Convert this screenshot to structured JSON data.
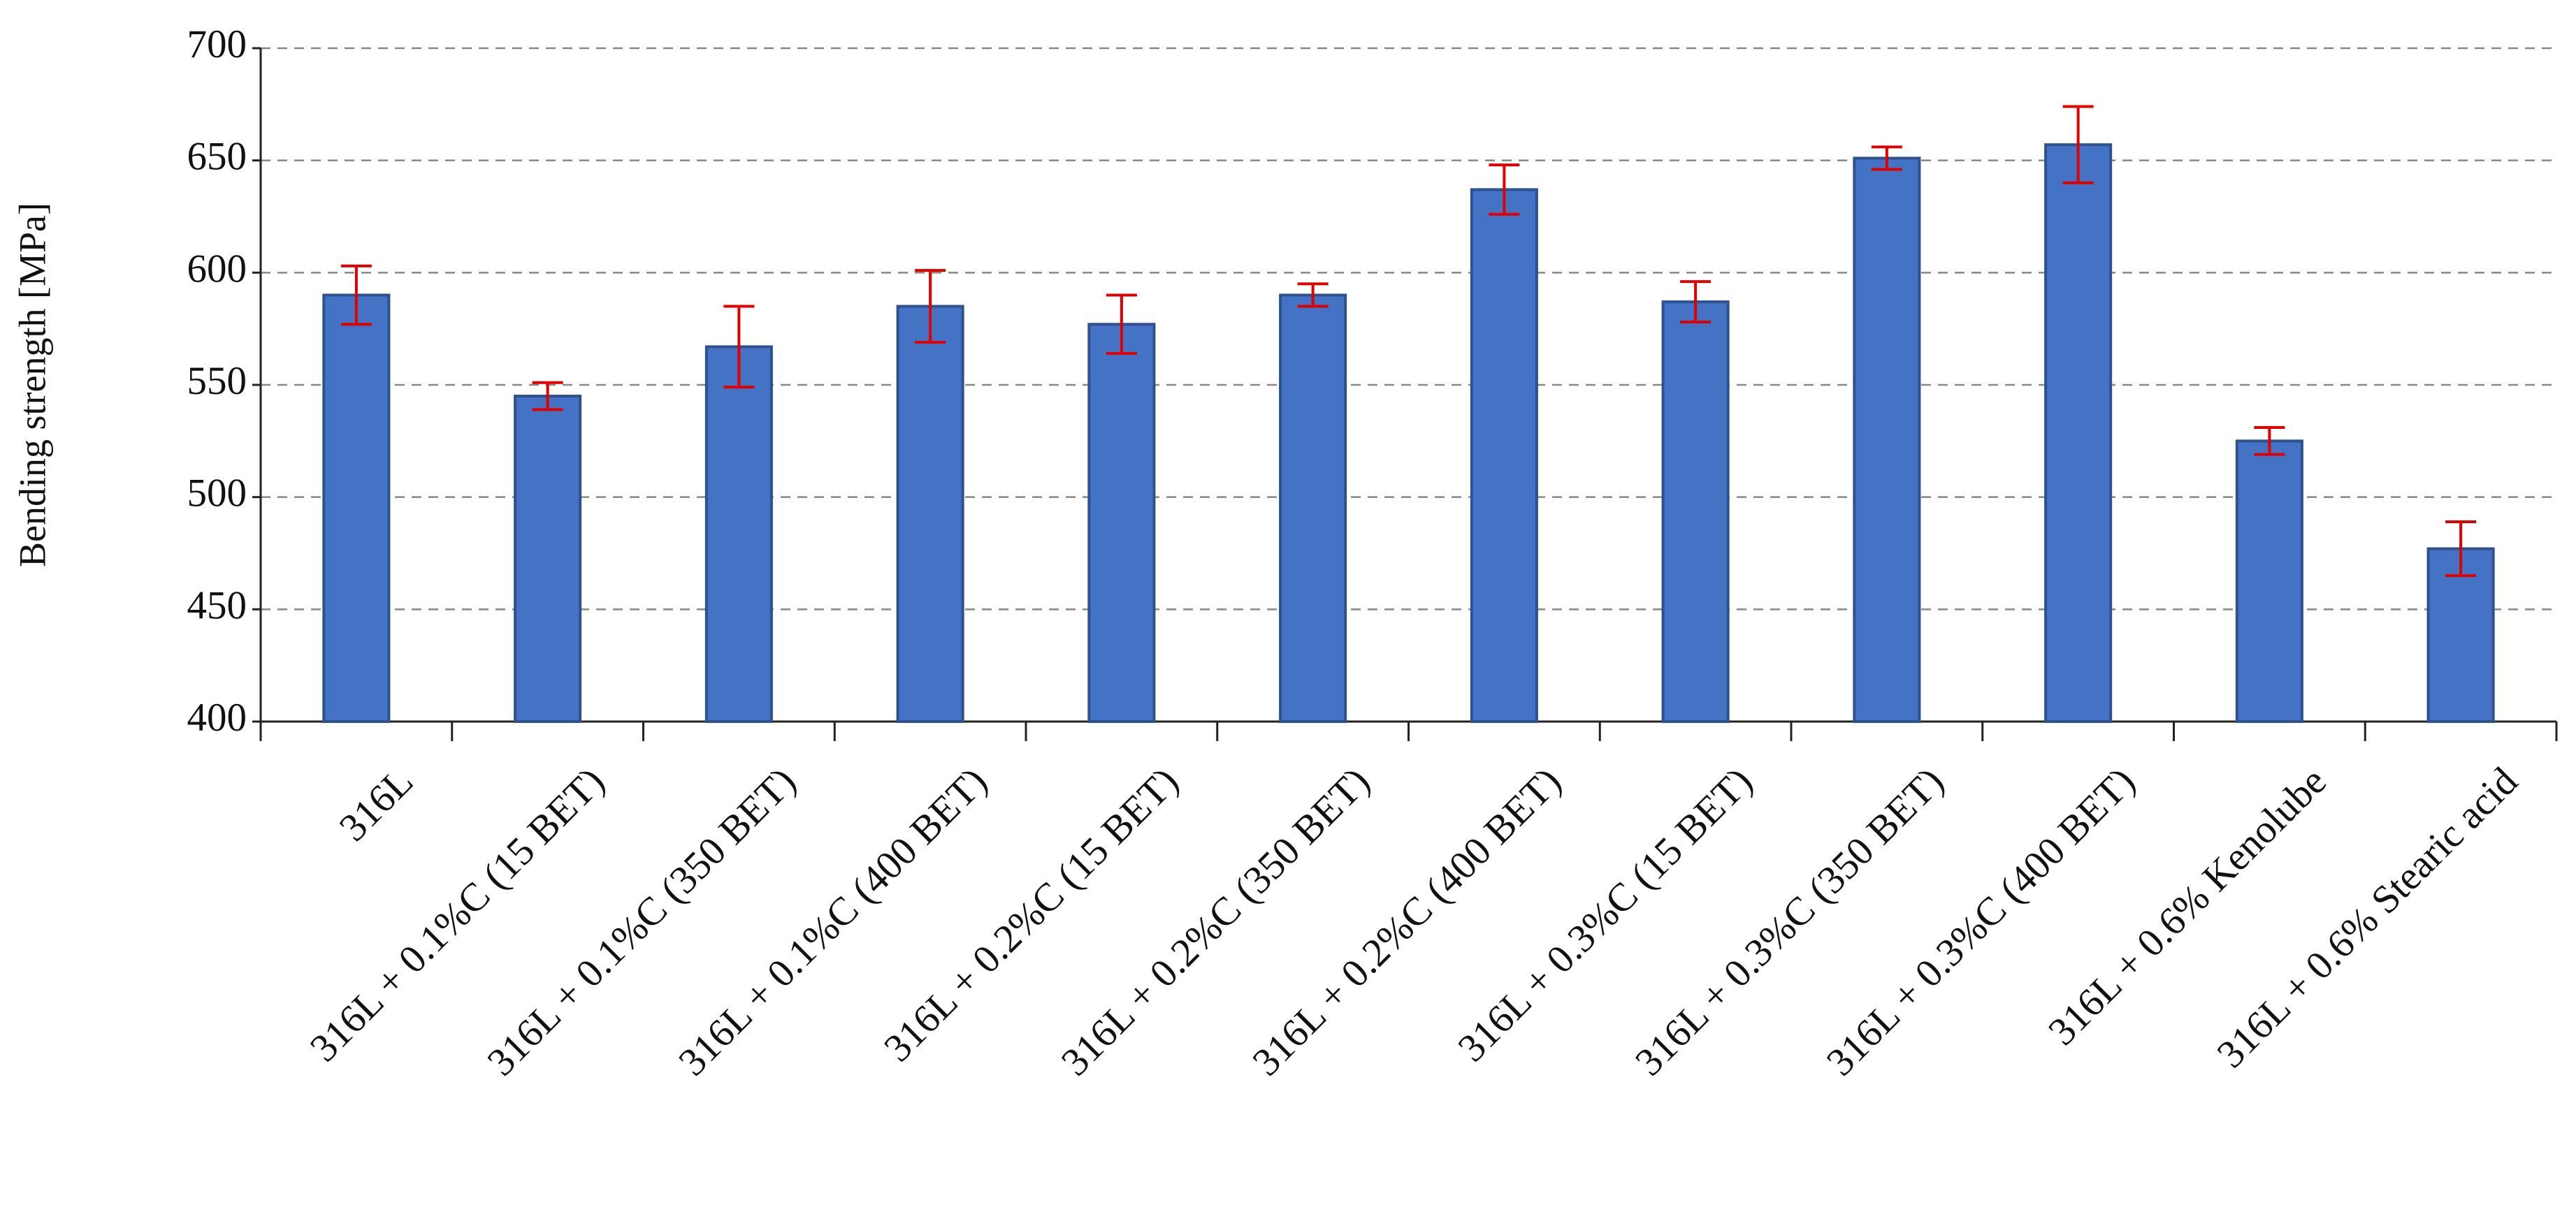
{
  "chart_data": {
    "type": "bar",
    "y_label": "Bending strength [MPa]",
    "categories": [
      "316L",
      "316L + 0.1%C (15 BET)",
      "316L + 0.1%C (350 BET)",
      "316L + 0.1%C (400 BET)",
      "316L + 0.2%C (15 BET)",
      "316L + 0.2%C (350 BET)",
      "316L + 0.2%C (400 BET)",
      "316L + 0.3%C (15 BET)",
      "316L + 0.3%C (350 BET)",
      "316L + 0.3%C (400 BET)",
      "316L + 0.6% Kenolube",
      "316L + 0.6% Stearic acid"
    ],
    "values": [
      590,
      545,
      567,
      585,
      577,
      590,
      637,
      587,
      651,
      657,
      525,
      477
    ],
    "errors": [
      13,
      6,
      18,
      16,
      13,
      5,
      11,
      9,
      5,
      17,
      6,
      12
    ],
    "color": "#4472c4",
    "edge_color": "#2f528f",
    "error_color": "#e00000",
    "ylim": [
      400,
      700
    ],
    "yticks": [
      400,
      450,
      500,
      550,
      600,
      650,
      700
    ],
    "grid": true
  }
}
